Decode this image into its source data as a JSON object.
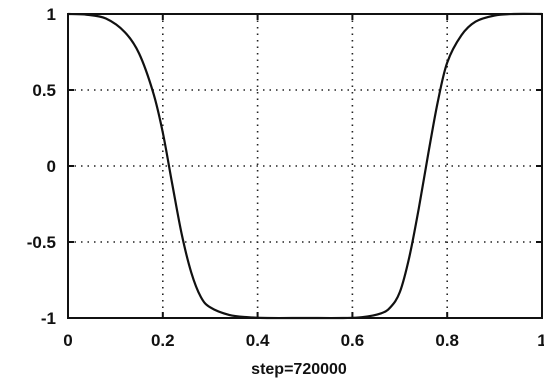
{
  "chart_data": {
    "type": "line",
    "xlabel": "step=720000",
    "ylabel": "",
    "title": "",
    "xlim": [
      0,
      1
    ],
    "ylim": [
      -1,
      1
    ],
    "grid": true,
    "x_ticks": [
      0,
      0.2,
      0.4,
      0.6,
      0.8,
      1
    ],
    "x_tick_labels": [
      "0",
      "0.2",
      "0.4",
      "0.6",
      "0.8",
      "1"
    ],
    "y_ticks": [
      1,
      0.5,
      0,
      -0.5,
      -1
    ],
    "y_tick_labels": [
      "1",
      "0.5",
      "0",
      "-0.5",
      "-1"
    ],
    "series": [
      {
        "color": "#111111",
        "x": [
          0,
          0.04,
          0.08,
          0.12,
          0.15,
          0.18,
          0.2,
          0.22,
          0.24,
          0.26,
          0.28,
          0.3,
          0.34,
          0.38,
          0.42,
          0.5,
          0.58,
          0.62,
          0.66,
          0.68,
          0.7,
          0.72,
          0.74,
          0.76,
          0.78,
          0.8,
          0.83,
          0.86,
          0.9,
          0.94,
          1
        ],
        "y": [
          1,
          0.995,
          0.97,
          0.88,
          0.74,
          0.48,
          0.22,
          -0.12,
          -0.45,
          -0.7,
          -0.86,
          -0.93,
          -0.98,
          -0.995,
          -1,
          -1,
          -1,
          -0.995,
          -0.97,
          -0.93,
          -0.83,
          -0.6,
          -0.28,
          0.08,
          0.42,
          0.68,
          0.86,
          0.95,
          0.99,
          1,
          1
        ]
      }
    ]
  }
}
